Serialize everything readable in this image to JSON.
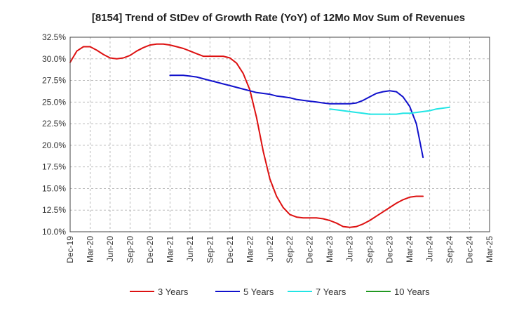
{
  "chart_data": {
    "type": "line",
    "title": "[8154]  Trend of StDev of Growth Rate (YoY) of 12Mo Mov Sum of Revenues",
    "xlabel": "",
    "ylabel": "",
    "ylim": [
      10.0,
      32.5
    ],
    "yticks": [
      10.0,
      12.5,
      15.0,
      17.5,
      20.0,
      22.5,
      25.0,
      27.5,
      30.0,
      32.5
    ],
    "ytick_labels": [
      "10.0%",
      "12.5%",
      "15.0%",
      "17.5%",
      "20.0%",
      "22.5%",
      "25.0%",
      "27.5%",
      "30.0%",
      "32.5%"
    ],
    "x_categories": [
      "Dec-19",
      "Mar-20",
      "Jun-20",
      "Sep-20",
      "Dec-20",
      "Mar-21",
      "Jun-21",
      "Sep-21",
      "Dec-21",
      "Mar-22",
      "Jun-22",
      "Sep-22",
      "Dec-22",
      "Mar-23",
      "Jun-23",
      "Sep-23",
      "Dec-23",
      "Mar-24",
      "Jun-24",
      "Sep-24",
      "Dec-24",
      "Mar-25"
    ],
    "grid": true,
    "legend_position": "bottom",
    "series": [
      {
        "name": "3 Years",
        "color": "#dd1111",
        "start_index": 0,
        "values": [
          29.6,
          30.9,
          31.4,
          31.4,
          31.0,
          30.5,
          30.1,
          30.0,
          30.1,
          30.4,
          30.9,
          31.3,
          31.6,
          31.7,
          31.7,
          31.6,
          31.4,
          31.2,
          30.9,
          30.6,
          30.3,
          30.3,
          30.3,
          30.3,
          30.1,
          29.5,
          28.3,
          26.4,
          23.2,
          19.3,
          16.1,
          14.1,
          12.8,
          12.0,
          11.7,
          11.6,
          11.6,
          11.6,
          11.5,
          11.3,
          11.0,
          10.6,
          10.5,
          10.6,
          10.9,
          11.3,
          11.8,
          12.3,
          12.8,
          13.3,
          13.7,
          14.0,
          14.1,
          14.1
        ]
      },
      {
        "name": "5 Years",
        "color": "#1111cc",
        "start_index": 15,
        "values": [
          28.1,
          28.1,
          28.1,
          28.0,
          27.9,
          27.7,
          27.5,
          27.3,
          27.1,
          26.9,
          26.7,
          26.5,
          26.3,
          26.1,
          26.0,
          25.9,
          25.7,
          25.6,
          25.5,
          25.3,
          25.2,
          25.1,
          25.0,
          24.9,
          24.8,
          24.8,
          24.8,
          24.8,
          24.9,
          25.2,
          25.6,
          26.0,
          26.2,
          26.3,
          26.2,
          25.6,
          24.5,
          22.5,
          18.6
        ]
      },
      {
        "name": "7 Years",
        "color": "#22e5e5",
        "start_index": 39,
        "values": [
          24.2,
          24.1,
          24.0,
          23.9,
          23.8,
          23.7,
          23.6,
          23.6,
          23.6,
          23.6,
          23.6,
          23.7,
          23.7,
          23.8,
          23.9,
          24.0,
          24.2,
          24.3,
          24.4
        ]
      },
      {
        "name": "10 Years",
        "color": "#229922",
        "start_index": 0,
        "values": []
      }
    ]
  }
}
